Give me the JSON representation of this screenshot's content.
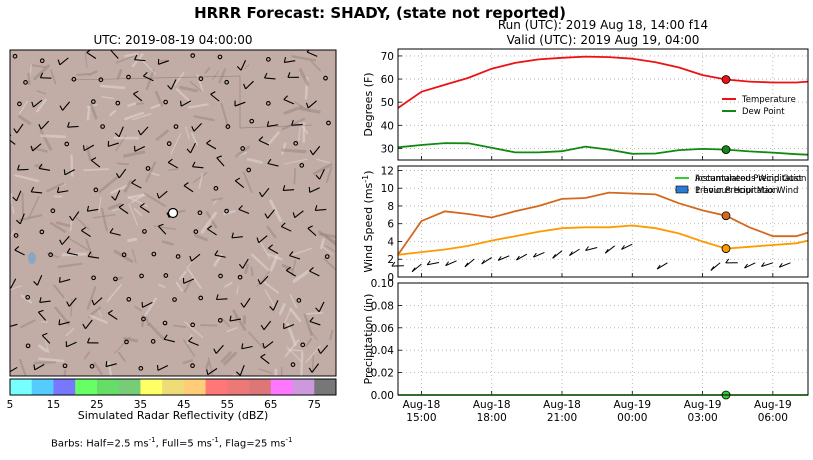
{
  "suptitle": "HRRR Forecast: SHADY, (state not reported)",
  "map": {
    "title": "UTC: 2019-08-19 04:00:00",
    "colorbar_label": "Simulated Radar Reflectivity (dBZ)",
    "colorbar_ticks": [
      "5",
      "15",
      "25",
      "35",
      "45",
      "55",
      "65",
      "75"
    ],
    "colorbar_colors": [
      "#77ffff",
      "#55ccff",
      "#7777ff",
      "#66ff66",
      "#66dd66",
      "#77cc77",
      "#ffff66",
      "#eedd77",
      "#ffcc77",
      "#ff7777",
      "#ee7777",
      "#dd7777",
      "#ff77ff",
      "#cc99dd",
      "#777777"
    ],
    "barbs_note_parts": [
      "Barbs: Half=2.5 ms",
      "-1",
      ", Full=5 ms",
      "-1",
      ", Flag=25 ms",
      "-1"
    ]
  },
  "meteogram": {
    "run_title": "Run (UTC): 2019 Aug 18, 14:00 f14",
    "valid_title": "Valid (UTC): 2019 Aug 19, 04:00",
    "x_ticks": [
      {
        "hour": 15,
        "line1": "Aug-18",
        "line2": "15:00"
      },
      {
        "hour": 18,
        "line1": "Aug-18",
        "line2": "18:00"
      },
      {
        "hour": 21,
        "line1": "Aug-18",
        "line2": "21:00"
      },
      {
        "hour": 24,
        "line1": "Aug-19",
        "line2": "00:00"
      },
      {
        "hour": 27,
        "line1": "Aug-19",
        "line2": "03:00"
      },
      {
        "hour": 30,
        "line1": "Aug-19",
        "line2": "06:00"
      }
    ]
  },
  "chart_data": [
    {
      "type": "line",
      "ylabel": "Degrees (F)",
      "ylim": [
        25,
        73
      ],
      "yticks": [
        30,
        40,
        50,
        60,
        70
      ],
      "xlim": [
        14,
        31.5
      ],
      "grid": true,
      "legend_position": "right",
      "marker_x": 28,
      "series": [
        {
          "name": "Temperature",
          "color": "#ee1111",
          "x": [
            14,
            15,
            16,
            17,
            18,
            19,
            20,
            21,
            22,
            23,
            24,
            25,
            26,
            27,
            28,
            29,
            30,
            31,
            31.5
          ],
          "y": [
            47.5,
            54.5,
            57.5,
            60.5,
            64.5,
            67,
            68.5,
            69.2,
            69.7,
            69.5,
            68.8,
            67.3,
            65,
            61.7,
            59.8,
            58.9,
            58.5,
            58.5,
            58.9
          ]
        },
        {
          "name": "Dew Point",
          "color": "#118811",
          "x": [
            14,
            15,
            16,
            17,
            18,
            19,
            20,
            21,
            22,
            23,
            24,
            25,
            26,
            27,
            28,
            29,
            30,
            31,
            31.5
          ],
          "y": [
            30.5,
            31.5,
            32.3,
            32.2,
            30.3,
            28.3,
            28.3,
            28.8,
            30.8,
            29.5,
            27.7,
            27.8,
            29.3,
            29.8,
            29.5,
            28.7,
            28.2,
            27.5,
            27.3
          ]
        }
      ]
    },
    {
      "type": "line",
      "ylabel": "Wind Speed (ms",
      "ylabel_sup": "-1",
      "ylabel_end": ")",
      "ylim": [
        0,
        12.5
      ],
      "yticks": [
        0,
        2,
        4,
        6,
        8,
        10,
        12
      ],
      "xlim": [
        14,
        31.5
      ],
      "grid": true,
      "legend_position": "top-right",
      "marker_x": 28,
      "series": [
        {
          "name": "Instantaneous Wind Gust",
          "color": "#d2691e",
          "x": [
            14,
            15,
            16,
            17,
            18,
            19,
            20,
            21,
            22,
            23,
            24,
            25,
            26,
            27,
            28,
            29,
            30,
            31,
            31.5
          ],
          "y": [
            2.5,
            6.3,
            7.4,
            7.1,
            6.7,
            7.4,
            8.0,
            8.8,
            8.9,
            9.5,
            9.4,
            9.3,
            8.3,
            7.5,
            6.9,
            5.6,
            4.6,
            4.6,
            5.0
          ]
        },
        {
          "name": "Previous Hour Max Wind",
          "color": "#ff9900",
          "x": [
            14,
            15,
            16,
            17,
            18,
            19,
            20,
            21,
            22,
            23,
            24,
            25,
            26,
            27,
            28,
            29,
            30,
            31,
            31.5
          ],
          "y": [
            2.5,
            2.8,
            3.1,
            3.5,
            4.1,
            4.6,
            5.1,
            5.5,
            5.6,
            5.6,
            5.8,
            5.5,
            4.9,
            4.0,
            3.2,
            3.4,
            3.6,
            3.8,
            4.1
          ]
        }
      ]
    },
    {
      "type": "line",
      "ylabel": "Precipitation (in)",
      "ylim": [
        0,
        0.1
      ],
      "yticks": [
        "0.00",
        "0.02",
        "0.04",
        "0.06",
        "0.08",
        "0.10"
      ],
      "xlim": [
        14,
        31.5
      ],
      "grid": true,
      "legend_position": "top-right",
      "marker_x": 28,
      "series": [
        {
          "name": "Accumulated Precipitation",
          "color": "#33cc33",
          "x": [
            14,
            15,
            16,
            17,
            18,
            19,
            20,
            21,
            22,
            23,
            24,
            25,
            26,
            27,
            28,
            29,
            30,
            31,
            31.5
          ],
          "y": [
            0,
            0,
            0,
            0,
            0,
            0,
            0,
            0,
            0,
            0,
            0,
            0,
            0,
            0,
            0,
            0,
            0,
            0,
            0
          ]
        },
        {
          "name": "1 hour Precipitation",
          "color": "#2b7bd6",
          "kind": "bar",
          "x": [
            14,
            15,
            16,
            17,
            18,
            19,
            20,
            21,
            22,
            23,
            24,
            25,
            26,
            27,
            28,
            29,
            30,
            31
          ],
          "y": [
            0,
            0,
            0,
            0,
            0,
            0,
            0,
            0,
            0,
            0,
            0,
            0,
            0,
            0,
            0,
            0,
            0,
            0
          ]
        }
      ]
    }
  ]
}
